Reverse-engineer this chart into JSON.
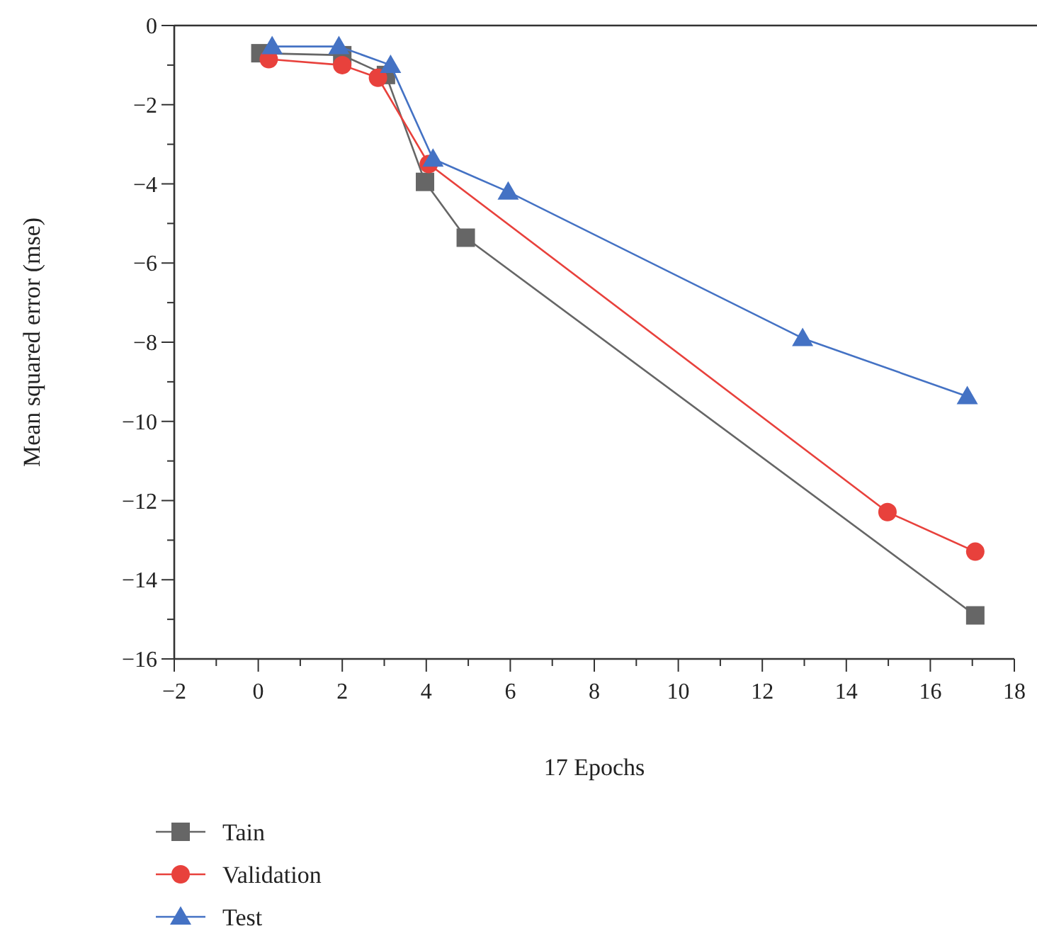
{
  "chart_data": {
    "type": "line",
    "xlabel": "17 Epochs",
    "ylabel": "Mean squared error (mse)",
    "xlim": [
      -2,
      18
    ],
    "ylim": [
      -16,
      0
    ],
    "xticks": [
      {
        "value": -2,
        "label": "−2"
      },
      {
        "value": -1,
        "label": null
      },
      0,
      {
        "value": 1,
        "label": null
      },
      2,
      {
        "value": 3,
        "label": null
      },
      4,
      {
        "value": 5,
        "label": null
      },
      6,
      {
        "value": 7,
        "label": null
      },
      8,
      {
        "value": 9,
        "label": null
      },
      10,
      {
        "value": 11,
        "label": null
      },
      12,
      {
        "value": 13,
        "label": null
      },
      14,
      {
        "value": 15,
        "label": null
      },
      16,
      {
        "value": 17,
        "label": null
      },
      18
    ],
    "yticks": [
      {
        "value": -16,
        "label": "−16"
      },
      {
        "value": -15,
        "label": null
      },
      {
        "value": -14,
        "label": "−14"
      },
      {
        "value": -13,
        "label": null
      },
      {
        "value": -12,
        "label": "−12"
      },
      {
        "value": -11,
        "label": null
      },
      {
        "value": -10,
        "label": "−10"
      },
      {
        "value": -9,
        "label": null
      },
      {
        "value": -8,
        "label": "−8"
      },
      {
        "value": -7,
        "label": null
      },
      {
        "value": -6,
        "label": "−6"
      },
      {
        "value": -5,
        "label": null
      },
      {
        "value": -4,
        "label": "−4"
      },
      {
        "value": -3,
        "label": null
      },
      {
        "value": -2,
        "label": "−2"
      },
      {
        "value": -1,
        "label": null
      },
      0
    ],
    "legend": "bottom left",
    "grid": false,
    "series": [
      {
        "name": "Tain",
        "color": "#666666",
        "marker": "square",
        "x": [
          0.05,
          2,
          3.04,
          3.97,
          4.94,
          17.07
        ],
        "values": [
          -0.7,
          -0.75,
          -1.25,
          -3.95,
          -5.36,
          -14.9
        ]
      },
      {
        "name": "Validation",
        "color": "#e8413c",
        "marker": "circle",
        "x": [
          0.25,
          2,
          2.85,
          4.06,
          14.98,
          17.07
        ],
        "values": [
          -0.85,
          -1.0,
          -1.32,
          -3.5,
          -12.29,
          -13.29
        ]
      },
      {
        "name": "Test",
        "color": "#4472c4",
        "marker": "triangle",
        "x": [
          0.33,
          1.92,
          3.15,
          4.16,
          5.95,
          12.96,
          16.88
        ],
        "values": [
          -0.53,
          -0.53,
          -1.0,
          -3.37,
          -4.2,
          -7.9,
          -9.37
        ]
      }
    ]
  }
}
